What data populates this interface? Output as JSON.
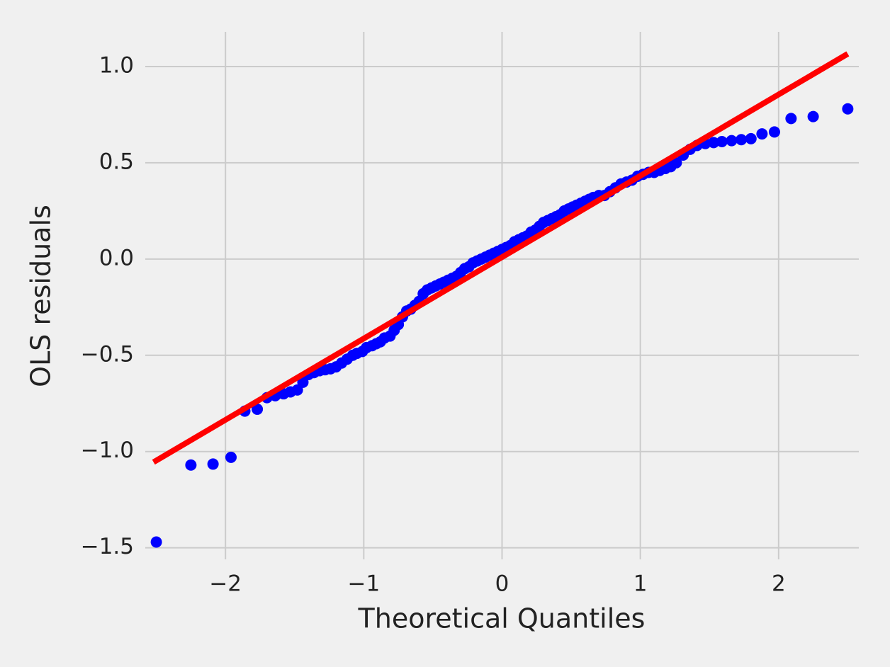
{
  "chart_data": {
    "type": "scatter",
    "x_label": "Theoretical Quantiles",
    "y_label": "OLS residuals",
    "xlim": [
      -2.58,
      2.58
    ],
    "ylim": [
      -1.56,
      1.18
    ],
    "xticks": [
      {
        "value": -2,
        "label": "−2"
      },
      {
        "value": -1,
        "label": "−1"
      },
      0,
      1,
      2
    ],
    "yticks": [
      {
        "value": -1.5,
        "label": "−1.5"
      },
      {
        "value": -1,
        "label": "−1.0"
      },
      {
        "value": -0.5,
        "label": "−0.5"
      },
      {
        "value": 0,
        "label": "0.0"
      },
      0.5,
      {
        "value": 1,
        "label": "1.0"
      }
    ],
    "grid": true,
    "series": [
      {
        "type": "scatter",
        "color": "#0000ff",
        "x": [
          -2.5,
          -2.25,
          -2.09,
          -1.96,
          -1.86,
          -1.77,
          -1.7,
          -1.64,
          -1.58,
          -1.53,
          -1.48,
          -1.44,
          -1.4,
          -1.36,
          -1.32,
          -1.28,
          -1.24,
          -1.2,
          -1.16,
          -1.12,
          -1.08,
          -1.05,
          -1.01,
          -0.98,
          -0.94,
          -0.91,
          -0.88,
          -0.85,
          -0.81,
          -0.78,
          -0.75,
          -0.72,
          -0.69,
          -0.66,
          -0.63,
          -0.6,
          -0.57,
          -0.54,
          -0.51,
          -0.48,
          -0.45,
          -0.42,
          -0.39,
          -0.36,
          -0.33,
          -0.3,
          -0.27,
          -0.24,
          -0.21,
          -0.18,
          -0.15,
          -0.12,
          -0.09,
          -0.06,
          -0.03,
          0.0,
          0.03,
          0.06,
          0.09,
          0.12,
          0.15,
          0.18,
          0.21,
          0.24,
          0.27,
          0.3,
          0.33,
          0.36,
          0.39,
          0.42,
          0.45,
          0.48,
          0.51,
          0.54,
          0.57,
          0.6,
          0.63,
          0.66,
          0.7,
          0.74,
          0.78,
          0.82,
          0.86,
          0.9,
          0.94,
          0.98,
          1.02,
          1.06,
          1.1,
          1.14,
          1.18,
          1.22,
          1.26,
          1.31,
          1.36,
          1.41,
          1.47,
          1.53,
          1.59,
          1.66,
          1.73,
          1.8,
          1.88,
          1.97,
          2.09,
          2.25,
          2.5
        ],
        "values": [
          -1.47,
          -1.07,
          -1.065,
          -1.03,
          -0.79,
          -0.78,
          -0.72,
          -0.71,
          -0.7,
          -0.69,
          -0.68,
          -0.64,
          -0.6,
          -0.59,
          -0.58,
          -0.575,
          -0.57,
          -0.56,
          -0.54,
          -0.52,
          -0.5,
          -0.49,
          -0.48,
          -0.46,
          -0.45,
          -0.44,
          -0.43,
          -0.41,
          -0.4,
          -0.37,
          -0.34,
          -0.3,
          -0.27,
          -0.26,
          -0.24,
          -0.22,
          -0.18,
          -0.16,
          -0.15,
          -0.14,
          -0.13,
          -0.12,
          -0.11,
          -0.1,
          -0.09,
          -0.07,
          -0.05,
          -0.04,
          -0.02,
          -0.01,
          0.0,
          0.01,
          0.02,
          0.03,
          0.04,
          0.05,
          0.06,
          0.07,
          0.09,
          0.1,
          0.11,
          0.12,
          0.14,
          0.15,
          0.17,
          0.19,
          0.2,
          0.21,
          0.22,
          0.23,
          0.25,
          0.26,
          0.27,
          0.28,
          0.29,
          0.3,
          0.31,
          0.32,
          0.33,
          0.33,
          0.35,
          0.37,
          0.39,
          0.4,
          0.41,
          0.43,
          0.44,
          0.45,
          0.45,
          0.46,
          0.47,
          0.48,
          0.5,
          0.54,
          0.57,
          0.59,
          0.6,
          0.605,
          0.61,
          0.615,
          0.62,
          0.625,
          0.65,
          0.66,
          0.73,
          0.74,
          0.78
        ]
      },
      {
        "type": "line",
        "color": "#ff0000",
        "x": [
          -2.52,
          2.5
        ],
        "values": [
          -1.055,
          1.066
        ]
      }
    ]
  }
}
